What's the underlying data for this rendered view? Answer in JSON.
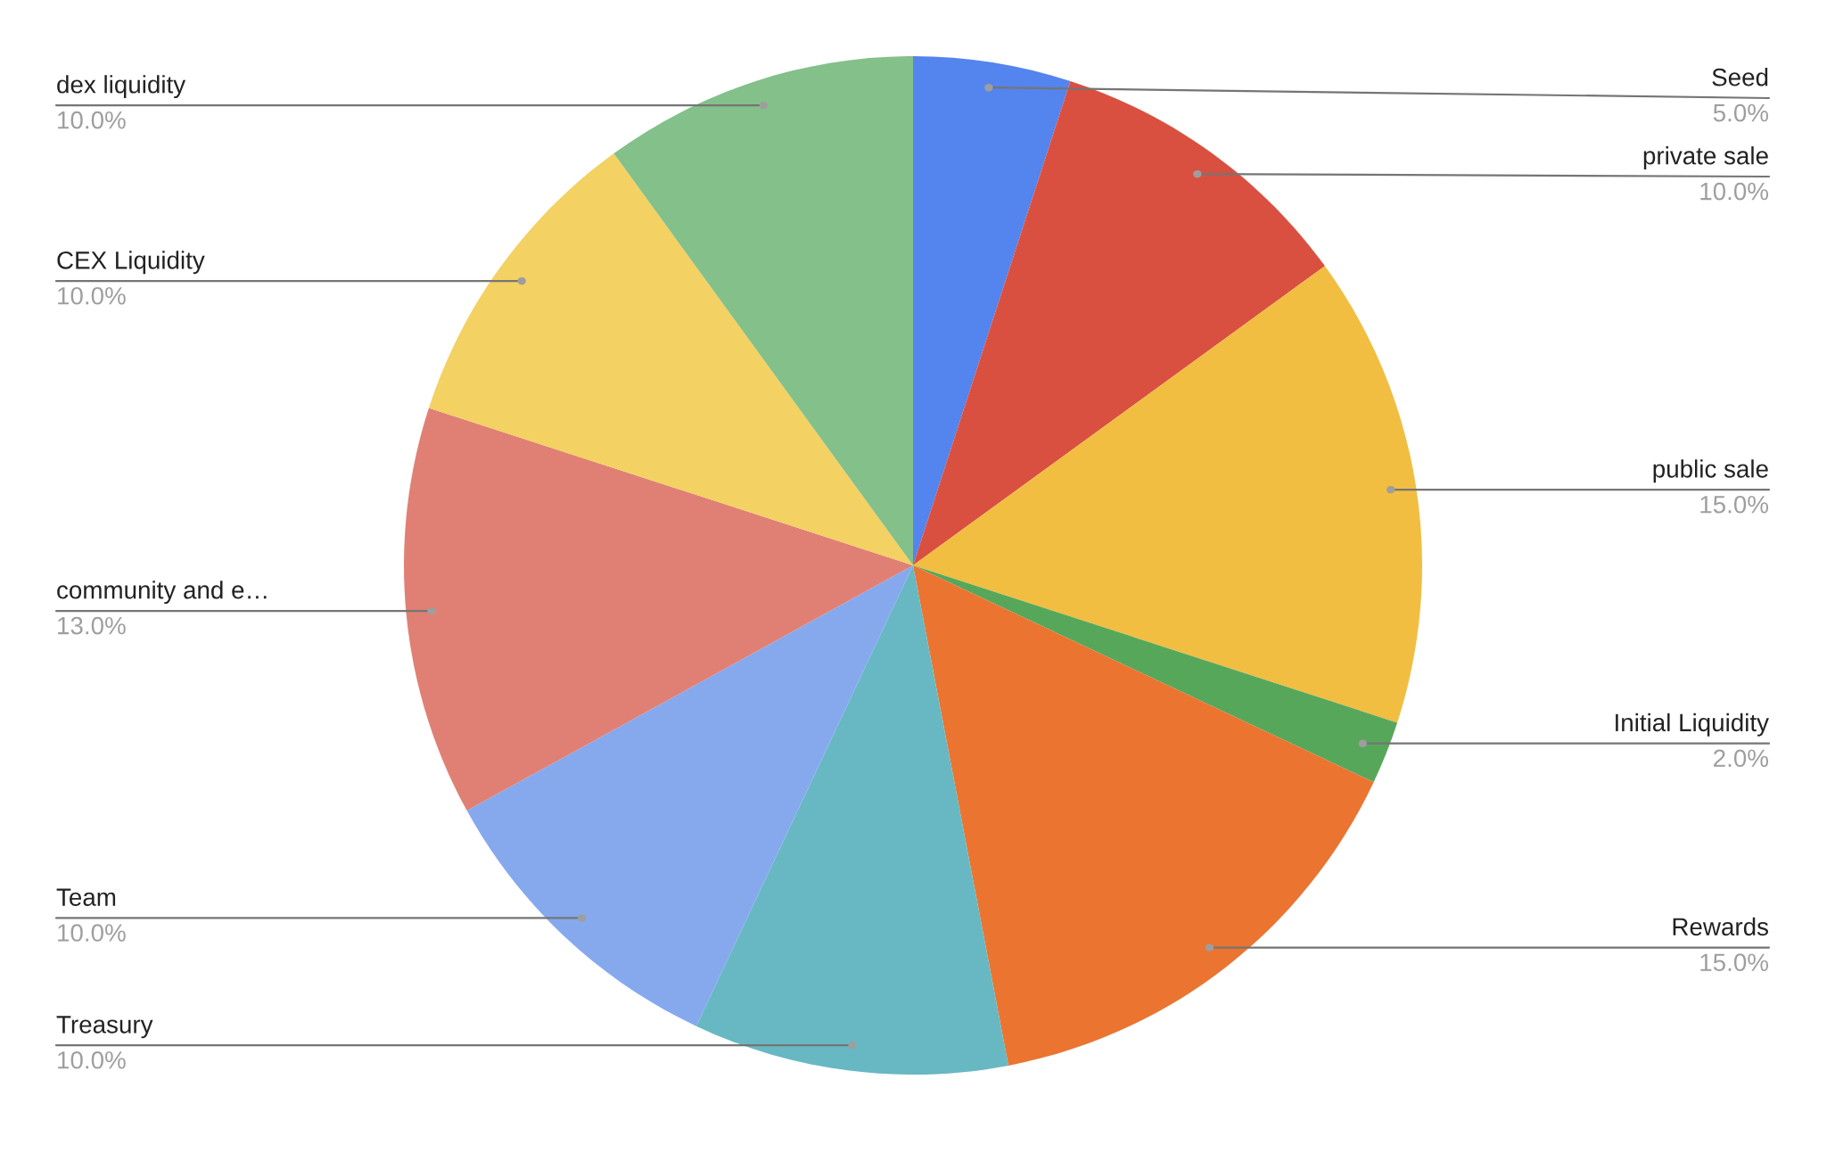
{
  "chart_data": {
    "type": "pie",
    "categories": [
      "Seed",
      "private sale",
      "public sale",
      "Initial Liquidity",
      "Rewards",
      "Treasury",
      "Team",
      "community and e…",
      "CEX Liquidity",
      "dex liquidity"
    ],
    "values": [
      5,
      10,
      15,
      2,
      15,
      10,
      10,
      13,
      10,
      10
    ],
    "value_labels": [
      "5.0%",
      "10.0%",
      "15.0%",
      "2.0%",
      "15.0%",
      "10.0%",
      "10.0%",
      "13.0%",
      "10.0%",
      "10.0%"
    ],
    "colors": [
      "#5484ed",
      "#d95040",
      "#f1be42",
      "#57a75b",
      "#eb7430",
      "#67b8c3",
      "#86a9ee",
      "#e08075",
      "#f3d162",
      "#84c08a"
    ],
    "legend": false
  }
}
